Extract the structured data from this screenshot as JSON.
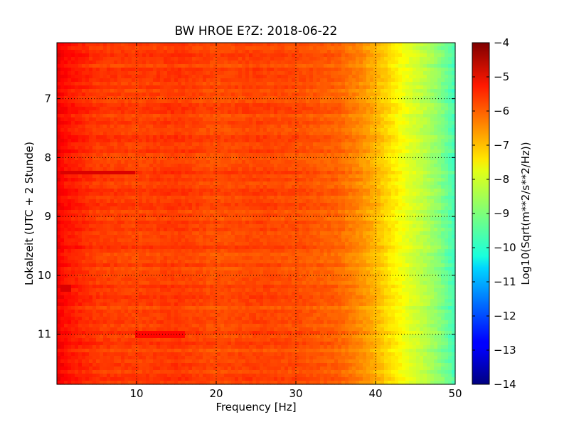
{
  "chart_data": {
    "type": "heatmap",
    "title": "BW HROE E?Z: 2018-06-22",
    "xlabel": "Frequency [Hz]",
    "ylabel": "Lokalzeit (UTC + 2 Stunde)",
    "xlim": [
      0,
      50
    ],
    "ylim": [
      11.85,
      6.05
    ],
    "x_ticks": [
      10,
      20,
      30,
      40,
      50
    ],
    "y_ticks": [
      7,
      8,
      9,
      10,
      11
    ],
    "grid": true,
    "colormap": "jet",
    "colorbar": {
      "label": "Log10(Sqrt(m**2/s**2/Hz))",
      "range": [
        -14,
        -4
      ],
      "ticks": [
        -4,
        -5,
        -6,
        -7,
        -8,
        -9,
        -10,
        -11,
        -12,
        -13,
        -14
      ]
    },
    "frequency_profile": {
      "freq_hz": [
        0,
        1,
        3,
        5,
        10,
        15,
        20,
        25,
        30,
        35,
        38,
        40,
        42,
        44,
        46,
        48,
        50
      ],
      "log10_psd": [
        -5.1,
        -5.4,
        -5.6,
        -5.8,
        -5.9,
        -5.8,
        -6.0,
        -5.9,
        -6.0,
        -6.2,
        -6.6,
        -7.0,
        -7.5,
        -8.0,
        -8.4,
        -8.9,
        -9.6
      ]
    },
    "notable_events": [
      {
        "time": 8.25,
        "freq_range_hz": [
          0.5,
          10
        ],
        "description_level": -4.9
      },
      {
        "time": 10.22,
        "freq_range_hz": [
          0.5,
          1.8
        ],
        "description_level": -4.9
      },
      {
        "time": 11.0,
        "freq_range_hz": [
          10,
          16
        ],
        "description_level": -5.3
      }
    ]
  }
}
